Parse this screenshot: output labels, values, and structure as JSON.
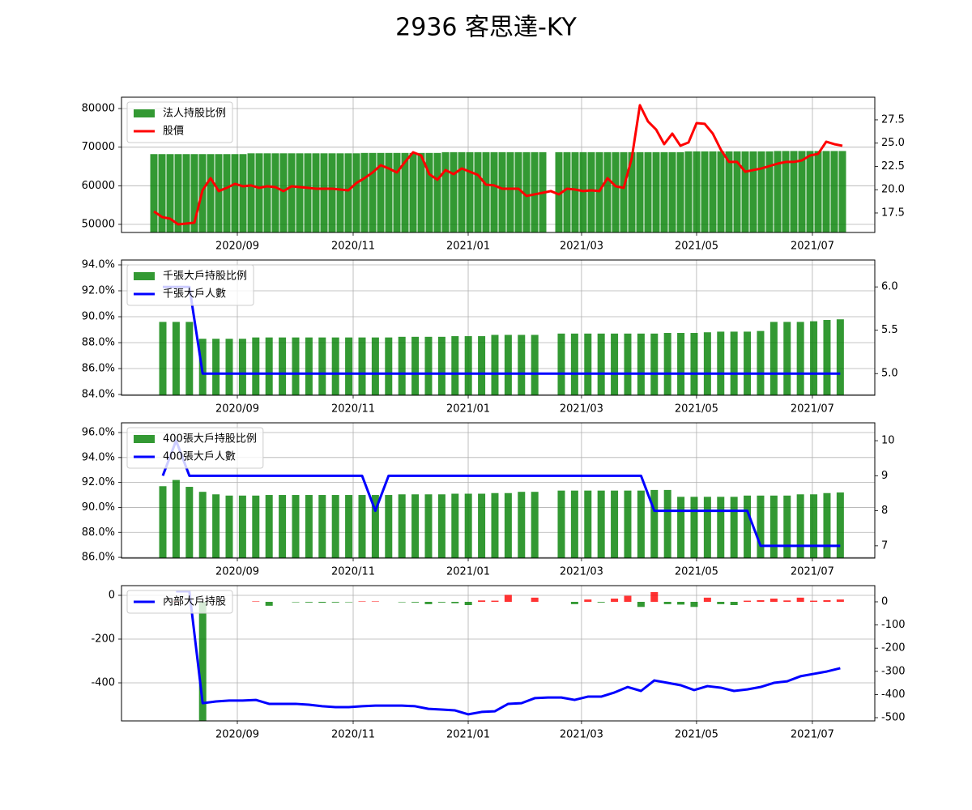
{
  "title": "2936 客思達-KY",
  "chart_data": [
    {
      "type": "combo",
      "grid": true,
      "legend": "upper left",
      "categories": [
        null,
        null,
        null,
        null,
        null,
        null,
        null,
        null,
        null,
        null,
        null,
        null,
        null,
        null,
        null,
        null,
        null,
        null,
        null,
        null,
        null,
        null,
        null,
        null,
        null,
        null,
        null,
        null,
        null,
        null,
        null,
        null,
        null,
        null,
        null,
        null,
        null,
        null,
        null,
        null,
        null,
        null,
        null,
        null,
        null,
        null,
        null,
        null,
        null,
        null,
        null,
        null,
        null,
        null,
        null,
        null,
        null,
        null,
        null,
        null,
        null,
        null,
        null,
        null,
        null,
        null,
        null,
        null,
        null,
        null,
        null,
        null,
        null,
        null,
        null,
        null,
        null,
        null,
        null,
        null,
        null,
        null,
        null,
        null,
        null,
        null
      ],
      "xlim": [
        -4,
        89
      ],
      "xticks": [
        {
          "value": 10.3,
          "label": "2020/09"
        },
        {
          "value": 24.6,
          "label": "2020/11"
        },
        {
          "value": 38.8,
          "label": "2021/01"
        },
        {
          "value": 52.8,
          "label": "2021/03"
        },
        {
          "value": 67,
          "label": "2021/05"
        },
        {
          "value": 81.3,
          "label": "2021/07"
        }
      ],
      "ylim": [
        47902,
        82937
      ],
      "yticks": [
        50000,
        60000,
        70000,
        80000
      ],
      "y2lim": [
        15.41,
        29.93
      ],
      "y2ticks": [
        17.5,
        {
          "value": 20,
          "label": "20.0"
        },
        22.5,
        {
          "value": 25,
          "label": "25.0"
        },
        27.5
      ],
      "series": [
        {
          "name": "法人持股比例",
          "type": "bar",
          "color": "#008000",
          "values": [
            68200,
            68200,
            68200,
            68200,
            68200,
            68200,
            68200,
            68200,
            68200,
            68200,
            68200,
            68200,
            68400,
            68400,
            68400,
            68400,
            68400,
            68400,
            68400,
            68400,
            68400,
            68400,
            68400,
            68400,
            68400,
            68400,
            68500,
            68500,
            68500,
            68500,
            68500,
            68500,
            68500,
            68500,
            68500,
            68500,
            68700,
            68700,
            68700,
            68700,
            68700,
            68700,
            68700,
            68700,
            68700,
            68700,
            68700,
            68700,
            68700,
            null,
            68700,
            68700,
            68700,
            68700,
            68700,
            68700,
            68700,
            68700,
            68700,
            68700,
            68700,
            68700,
            68700,
            68700,
            68700,
            68700,
            68900,
            68900,
            68900,
            68900,
            68900,
            68900,
            68900,
            68900,
            68900,
            68900,
            68900,
            69000,
            69000,
            69000,
            69000,
            69000,
            69000,
            69000,
            69000,
            69000
          ]
        },
        {
          "name": "股價",
          "type": "line",
          "axis": "y2",
          "color": "#ff0000",
          "values": [
            17.67,
            17.07,
            16.89,
            16.28,
            16.37,
            16.46,
            19.93,
            21.24,
            19.85,
            20.2,
            20.63,
            20.37,
            20.46,
            20.2,
            20.37,
            20.28,
            19.85,
            20.37,
            20.28,
            20.2,
            20.11,
            20.11,
            20.11,
            20.02,
            19.93,
            20.72,
            21.24,
            21.85,
            22.63,
            22.28,
            21.85,
            22.98,
            24.02,
            23.67,
            21.67,
            21.07,
            22.11,
            21.67,
            22.28,
            21.93,
            21.59,
            20.54,
            20.46,
            20.11,
            20.11,
            20.11,
            19.33,
            19.5,
            19.67,
            19.85,
            19.5,
            20.11,
            20.02,
            19.85,
            19.93,
            19.85,
            21.24,
            20.37,
            20.2,
            23.41,
            29.07,
            27.33,
            26.46,
            24.89,
            26.02,
            24.72,
            25.07,
            27.15,
            27.07,
            26.02,
            24.28,
            22.98,
            22.98,
            21.93,
            22.11,
            22.28,
            22.54,
            22.8,
            22.98,
            22.98,
            23.15,
            23.67,
            23.85,
            25.15,
            24.89,
            24.72
          ]
        }
      ]
    },
    {
      "type": "combo",
      "grid": true,
      "legend": "upper left",
      "categories": [
        null,
        null,
        null,
        null,
        null,
        null,
        null,
        null,
        null,
        null,
        null,
        null,
        null,
        null,
        null,
        null,
        null,
        null,
        null,
        null,
        null,
        null,
        null,
        null,
        null,
        null,
        null,
        null,
        null,
        null,
        null,
        null,
        null,
        null,
        null,
        null,
        null,
        null,
        null,
        null,
        null,
        null,
        null,
        null,
        null,
        null,
        null,
        null,
        null,
        null,
        null,
        null
      ],
      "xlim": [
        -3.11,
        53.6
      ],
      "xticks": [
        {
          "value": 5.61,
          "label": "2020/09"
        },
        {
          "value": 14.33,
          "label": "2020/11"
        },
        {
          "value": 22.99,
          "label": "2021/01"
        },
        {
          "value": 31.52,
          "label": "2021/03"
        },
        {
          "value": 40.18,
          "label": "2021/05"
        },
        {
          "value": 48.9,
          "label": "2021/07"
        }
      ],
      "ylim": [
        83.94,
        94.375
      ],
      "yticks": [
        {
          "value": 84,
          "label": "84.0%"
        },
        {
          "value": 86,
          "label": "86.0%"
        },
        {
          "value": 88,
          "label": "88.0%"
        },
        {
          "value": 90,
          "label": "90.0%"
        },
        {
          "value": 92,
          "label": "92.0%"
        },
        {
          "value": 94,
          "label": "94.0%"
        }
      ],
      "y2lim": [
        4.75,
        6.31
      ],
      "y2ticks": [
        {
          "value": 5,
          "label": "5.0"
        },
        5.5,
        {
          "value": 6,
          "label": "6.0"
        }
      ],
      "series": [
        {
          "name": "千張大戶持股比例",
          "type": "bar",
          "color": "#008000",
          "values": [
            89.6,
            89.6,
            89.6,
            88.3,
            88.3,
            88.3,
            88.3,
            88.4,
            88.4,
            88.4,
            88.4,
            88.4,
            88.4,
            88.4,
            88.4,
            88.4,
            88.4,
            88.4,
            88.45,
            88.45,
            88.45,
            88.45,
            88.5,
            88.5,
            88.5,
            88.6,
            88.6,
            88.6,
            88.6,
            null,
            88.7,
            88.7,
            88.7,
            88.7,
            88.7,
            88.7,
            88.7,
            88.7,
            88.75,
            88.75,
            88.75,
            88.8,
            88.85,
            88.85,
            88.85,
            88.9,
            89.6,
            89.6,
            89.6,
            89.65,
            89.75,
            89.8
          ]
        },
        {
          "name": "千張大戶人數",
          "type": "line",
          "axis": "y2",
          "color": "#0000ff",
          "values": [
            6,
            6,
            6,
            5,
            5,
            5,
            5,
            5,
            5,
            5,
            5,
            5,
            5,
            5,
            5,
            5,
            5,
            5,
            5,
            5,
            5,
            5,
            5,
            5,
            5,
            5,
            5,
            5,
            5,
            5,
            5,
            5,
            5,
            5,
            5,
            5,
            5,
            5,
            5,
            5,
            5,
            5,
            5,
            5,
            5,
            5,
            5,
            5,
            5,
            5,
            5,
            5
          ]
        }
      ]
    },
    {
      "type": "combo",
      "grid": true,
      "legend": "upper left",
      "categories": [
        null,
        null,
        null,
        null,
        null,
        null,
        null,
        null,
        null,
        null,
        null,
        null,
        null,
        null,
        null,
        null,
        null,
        null,
        null,
        null,
        null,
        null,
        null,
        null,
        null,
        null,
        null,
        null,
        null,
        null,
        null,
        null,
        null,
        null,
        null,
        null,
        null,
        null,
        null,
        null,
        null,
        null,
        null,
        null,
        null,
        null,
        null,
        null,
        null,
        null,
        null,
        null
      ],
      "xlim": [
        -3.11,
        53.6
      ],
      "xticks": [
        {
          "value": 5.61,
          "label": "2020/09"
        },
        {
          "value": 14.33,
          "label": "2020/11"
        },
        {
          "value": 22.99,
          "label": "2021/01"
        },
        {
          "value": 31.52,
          "label": "2021/03"
        },
        {
          "value": 40.18,
          "label": "2021/05"
        },
        {
          "value": 48.9,
          "label": "2021/07"
        }
      ],
      "ylim": [
        85.94,
        96.78
      ],
      "yticks": [
        {
          "value": 86,
          "label": "86.0%"
        },
        {
          "value": 88,
          "label": "88.0%"
        },
        {
          "value": 90,
          "label": "90.0%"
        },
        {
          "value": 92,
          "label": "92.0%"
        },
        {
          "value": 94,
          "label": "94.0%"
        },
        {
          "value": 96,
          "label": "96.0%"
        }
      ],
      "y2lim": [
        6.65,
        10.51
      ],
      "y2ticks": [
        7,
        8,
        9,
        10
      ],
      "series": [
        {
          "name": "400張大戶持股比例",
          "type": "bar",
          "color": "#008000",
          "values": [
            91.7,
            92.2,
            91.65,
            91.25,
            91.05,
            90.95,
            90.95,
            90.95,
            91.0,
            91.0,
            91.0,
            91.0,
            91.0,
            91.0,
            91.0,
            91.0,
            91.0,
            91.0,
            91.05,
            91.05,
            91.05,
            91.05,
            91.1,
            91.1,
            91.1,
            91.15,
            91.15,
            91.25,
            91.25,
            null,
            91.35,
            91.35,
            91.35,
            91.35,
            91.35,
            91.35,
            91.35,
            91.4,
            91.4,
            90.85,
            90.85,
            90.85,
            90.85,
            90.85,
            90.95,
            90.95,
            90.95,
            90.95,
            91.05,
            91.05,
            91.15,
            91.2
          ]
        },
        {
          "name": "400張大戶人數",
          "type": "line",
          "axis": "y2",
          "color": "#0000ff",
          "values": [
            9,
            10,
            9,
            9,
            9,
            9,
            9,
            9,
            9,
            9,
            9,
            9,
            9,
            9,
            9,
            9,
            8,
            9,
            9,
            9,
            9,
            9,
            9,
            9,
            9,
            9,
            9,
            9,
            9,
            9,
            9,
            9,
            9,
            9,
            9,
            9,
            9,
            8,
            8,
            8,
            8,
            8,
            8,
            8,
            8,
            7,
            7,
            7,
            7,
            7,
            7,
            7
          ]
        }
      ]
    },
    {
      "type": "combo",
      "grid": true,
      "legend": "upper left",
      "categories": [
        null,
        null,
        null,
        null,
        null,
        null,
        null,
        null,
        null,
        null,
        null,
        null,
        null,
        null,
        null,
        null,
        null,
        null,
        null,
        null,
        null,
        null,
        null,
        null,
        null,
        null,
        null,
        null,
        null,
        null,
        null,
        null,
        null,
        null,
        null,
        null,
        null,
        null,
        null,
        null,
        null,
        null,
        null,
        null,
        null,
        null,
        null,
        null,
        null,
        null,
        null,
        null
      ],
      "xlim": [
        -3.11,
        53.6
      ],
      "xticks": [
        {
          "value": 5.61,
          "label": "2020/09"
        },
        {
          "value": 14.33,
          "label": "2020/11"
        },
        {
          "value": 22.99,
          "label": "2021/01"
        },
        {
          "value": 31.52,
          "label": "2021/03"
        },
        {
          "value": 40.18,
          "label": "2021/05"
        },
        {
          "value": 48.9,
          "label": "2021/07"
        }
      ],
      "ylim": [
        -574,
        44.4
      ],
      "yticks": [
        -400,
        -200,
        0
      ],
      "y2lim": [
        -514,
        69.9
      ],
      "y2ticks": [
        -500,
        -400,
        -300,
        -200,
        -100,
        0
      ],
      "series": [
        {
          "type": "bar",
          "axis": "y2",
          "positive_color": "#ff0000",
          "negative_color": "#008000",
          "values": [
            null,
            3,
            0,
            -514,
            0,
            0,
            0,
            2,
            -17,
            0,
            -2,
            -3,
            -4,
            -3,
            -2,
            2,
            2,
            0,
            -2,
            -3,
            -10,
            -3,
            -6,
            -14,
            6,
            5,
            30,
            0,
            18,
            null,
            0,
            -10,
            10,
            -3,
            14,
            26,
            -22,
            42,
            -10,
            -12,
            -22,
            18,
            -10,
            -14,
            5,
            7,
            14,
            6,
            18,
            5,
            7,
            10
          ]
        },
        {
          "name": "內部大戶持股",
          "type": "line",
          "color": "#0000ff",
          "values": [
            null,
            18.5,
            18.5,
            -493,
            -485,
            -481,
            -481,
            -478,
            -496,
            -496,
            -496,
            -500,
            -507,
            -511,
            -511,
            -507,
            -504,
            -504,
            -504,
            -507,
            -519,
            -522,
            -526,
            -544,
            -533,
            -530,
            -496,
            -493,
            -470,
            -467,
            -467,
            -478,
            -463,
            -463,
            -444,
            -419,
            -437,
            -389,
            -400,
            -411,
            -433,
            -415,
            -422,
            -437,
            -430,
            -419,
            -400,
            -393,
            -370,
            -359,
            -348,
            -333
          ]
        }
      ]
    }
  ]
}
